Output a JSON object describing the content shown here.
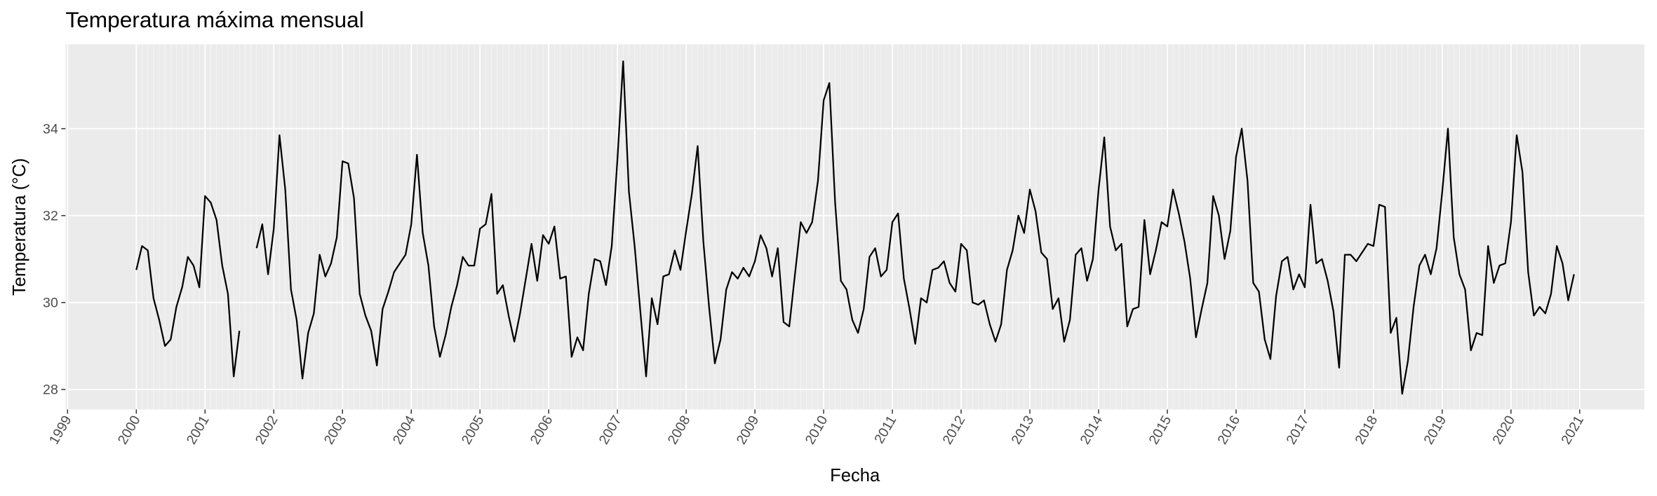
{
  "chart_data": {
    "type": "line",
    "title": "Temperatura máxima mensual",
    "x_label": "Fecha",
    "y_label": "Temperatura (°C)",
    "x": [
      2000,
      2000.083,
      2000.167,
      2000.25,
      2000.333,
      2000.417,
      2000.5,
      2000.583,
      2000.667,
      2000.75,
      2000.833,
      2000.917,
      2001,
      2001.083,
      2001.167,
      2001.25,
      2001.333,
      2001.417,
      2001.5,
      2001.583,
      2001.667,
      2001.75,
      2001.833,
      2001.917,
      2002,
      2002.083,
      2002.167,
      2002.25,
      2002.333,
      2002.417,
      2002.5,
      2002.583,
      2002.667,
      2002.75,
      2002.833,
      2002.917,
      2003,
      2003.083,
      2003.167,
      2003.25,
      2003.333,
      2003.417,
      2003.5,
      2003.583,
      2003.667,
      2003.75,
      2003.833,
      2003.917,
      2004,
      2004.083,
      2004.167,
      2004.25,
      2004.333,
      2004.417,
      2004.5,
      2004.583,
      2004.667,
      2004.75,
      2004.833,
      2004.917,
      2005,
      2005.083,
      2005.167,
      2005.25,
      2005.333,
      2005.417,
      2005.5,
      2005.583,
      2005.667,
      2005.75,
      2005.833,
      2005.917,
      2006,
      2006.083,
      2006.167,
      2006.25,
      2006.333,
      2006.417,
      2006.5,
      2006.583,
      2006.667,
      2006.75,
      2006.833,
      2006.917,
      2007,
      2007.083,
      2007.167,
      2007.25,
      2007.333,
      2007.417,
      2007.5,
      2007.583,
      2007.667,
      2007.75,
      2007.833,
      2007.917,
      2008,
      2008.083,
      2008.167,
      2008.25,
      2008.333,
      2008.417,
      2008.5,
      2008.583,
      2008.667,
      2008.75,
      2008.833,
      2008.917,
      2009,
      2009.083,
      2009.167,
      2009.25,
      2009.333,
      2009.417,
      2009.5,
      2009.583,
      2009.667,
      2009.75,
      2009.833,
      2009.917,
      2010,
      2010.083,
      2010.167,
      2010.25,
      2010.333,
      2010.417,
      2010.5,
      2010.583,
      2010.667,
      2010.75,
      2010.833,
      2010.917,
      2011,
      2011.083,
      2011.167,
      2011.25,
      2011.333,
      2011.417,
      2011.5,
      2011.583,
      2011.667,
      2011.75,
      2011.833,
      2011.917,
      2012,
      2012.083,
      2012.167,
      2012.25,
      2012.333,
      2012.417,
      2012.5,
      2012.583,
      2012.667,
      2012.75,
      2012.833,
      2012.917,
      2013,
      2013.083,
      2013.167,
      2013.25,
      2013.333,
      2013.417,
      2013.5,
      2013.583,
      2013.667,
      2013.75,
      2013.833,
      2013.917,
      2014,
      2014.083,
      2014.167,
      2014.25,
      2014.333,
      2014.417,
      2014.5,
      2014.583,
      2014.667,
      2014.75,
      2014.833,
      2014.917,
      2015,
      2015.083,
      2015.167,
      2015.25,
      2015.333,
      2015.417,
      2015.5,
      2015.583,
      2015.667,
      2015.75,
      2015.833,
      2015.917,
      2016,
      2016.083,
      2016.167,
      2016.25,
      2016.333,
      2016.417,
      2016.5,
      2016.583,
      2016.667,
      2016.75,
      2016.833,
      2016.917,
      2017,
      2017.083,
      2017.167,
      2017.25,
      2017.333,
      2017.417,
      2017.5,
      2017.583,
      2017.667,
      2017.75,
      2017.833,
      2017.917,
      2018,
      2018.083,
      2018.167,
      2018.25,
      2018.333,
      2018.417,
      2018.5,
      2018.583,
      2018.667,
      2018.75,
      2018.833,
      2018.917,
      2019,
      2019.083,
      2019.167,
      2019.25,
      2019.333,
      2019.417,
      2019.5,
      2019.583,
      2019.667,
      2019.75,
      2019.833,
      2019.917,
      2020,
      2020.083,
      2020.167,
      2020.25,
      2020.333,
      2020.417,
      2020.5,
      2020.583,
      2020.667,
      2020.75,
      2020.833,
      2020.917
    ],
    "values": [
      30.75,
      31.3,
      31.2,
      30.1,
      29.6,
      29.0,
      29.15,
      29.9,
      30.35,
      31.05,
      30.85,
      30.35,
      32.45,
      32.3,
      31.9,
      30.85,
      30.2,
      28.3,
      29.35,
      null,
      null,
      31.25,
      31.8,
      30.65,
      31.7,
      33.85,
      32.6,
      30.3,
      29.6,
      28.25,
      29.3,
      29.75,
      31.1,
      30.6,
      30.9,
      31.5,
      33.25,
      33.2,
      32.4,
      30.2,
      29.7,
      29.35,
      28.55,
      29.85,
      30.25,
      30.7,
      30.9,
      31.1,
      31.8,
      33.4,
      31.6,
      30.85,
      29.45,
      28.75,
      29.25,
      29.9,
      30.4,
      31.05,
      30.85,
      30.85,
      31.7,
      31.8,
      32.5,
      30.2,
      30.4,
      29.7,
      29.1,
      29.75,
      30.55,
      31.35,
      30.5,
      31.55,
      31.35,
      31.75,
      30.55,
      30.6,
      28.75,
      29.2,
      28.9,
      30.2,
      31.0,
      30.95,
      30.4,
      31.3,
      33.3,
      35.55,
      32.55,
      31.3,
      29.8,
      28.3,
      30.1,
      29.5,
      30.6,
      30.65,
      31.2,
      30.75,
      31.65,
      32.5,
      33.6,
      31.4,
      29.9,
      28.6,
      29.15,
      30.3,
      30.7,
      30.55,
      30.8,
      30.6,
      30.95,
      31.55,
      31.25,
      30.6,
      31.25,
      29.55,
      29.45,
      30.65,
      31.85,
      31.6,
      31.85,
      32.8,
      34.65,
      35.05,
      32.3,
      30.5,
      30.3,
      29.6,
      29.3,
      29.85,
      31.05,
      31.25,
      30.6,
      30.75,
      31.85,
      32.05,
      30.55,
      29.85,
      29.05,
      30.1,
      30.0,
      30.75,
      30.8,
      30.95,
      30.45,
      30.25,
      31.35,
      31.2,
      30.0,
      29.95,
      30.05,
      29.5,
      29.1,
      29.5,
      30.75,
      31.2,
      32.0,
      31.6,
      32.6,
      32.1,
      31.15,
      31.0,
      29.85,
      30.1,
      29.1,
      29.6,
      31.1,
      31.25,
      30.5,
      31.0,
      32.6,
      33.8,
      31.75,
      31.2,
      31.35,
      29.45,
      29.85,
      29.9,
      31.9,
      30.65,
      31.2,
      31.85,
      31.75,
      32.6,
      32.05,
      31.4,
      30.55,
      29.2,
      29.85,
      30.45,
      32.45,
      32.0,
      31.0,
      31.65,
      33.35,
      34.0,
      32.8,
      30.45,
      30.25,
      29.15,
      28.7,
      30.15,
      30.95,
      31.05,
      30.3,
      30.65,
      30.35,
      32.25,
      30.9,
      31.0,
      30.5,
      29.8,
      28.5,
      31.1,
      31.1,
      30.95,
      31.15,
      31.35,
      31.3,
      32.25,
      32.2,
      29.3,
      29.65,
      27.9,
      28.65,
      29.9,
      30.85,
      31.1,
      30.65,
      31.25,
      32.55,
      34.0,
      31.5,
      30.65,
      30.3,
      28.9,
      29.3,
      29.25,
      31.3,
      30.45,
      30.85,
      30.9,
      31.85,
      33.85,
      33.0,
      30.7,
      29.7,
      29.9,
      29.75,
      30.2,
      31.3,
      30.9,
      30.05,
      30.65
    ],
    "color": "#000000",
    "xlim": [
      1998.97,
      2021.94
    ],
    "xticks": [
      1999,
      2000,
      2001,
      2002,
      2003,
      2004,
      2005,
      2006,
      2007,
      2008,
      2009,
      2010,
      2011,
      2012,
      2013,
      2014,
      2015,
      2016,
      2017,
      2018,
      2019,
      2020,
      2021
    ],
    "ylim": [
      27.54,
      35.94
    ],
    "yticks": [
      28,
      30,
      32,
      34
    ],
    "grid": true
  }
}
